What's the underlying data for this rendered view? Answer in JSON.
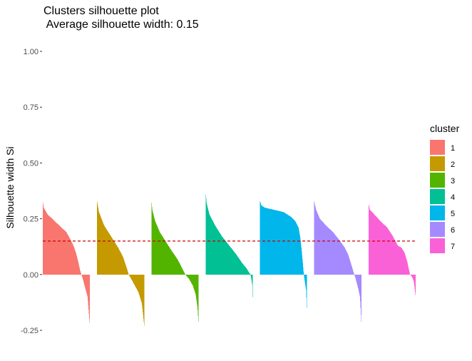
{
  "chart_data": {
    "type": "bar",
    "title": "Clusters silhouette plot",
    "subtitle": " Average silhouette width: 0.15",
    "xlabel": "",
    "ylabel": "Silhouette width Si",
    "ylim": [
      -0.25,
      1.0
    ],
    "yticks": [
      "1.00",
      "0.75",
      "0.50",
      "0.25",
      "0.00",
      "-0.25"
    ],
    "reference_line": {
      "value": 0.15,
      "color": "#cc0000",
      "style": "dashed"
    },
    "legend": {
      "title": "cluster",
      "position": "right"
    },
    "series": [
      {
        "name": "1",
        "color": "#F8766D",
        "max": 0.33,
        "min": -0.23,
        "profile": [
          [
            0,
            0.33
          ],
          [
            0.02,
            0.3
          ],
          [
            0.1,
            0.27
          ],
          [
            0.25,
            0.24
          ],
          [
            0.4,
            0.21
          ],
          [
            0.5,
            0.19
          ],
          [
            0.58,
            0.16
          ],
          [
            0.65,
            0.13
          ],
          [
            0.7,
            0.1
          ],
          [
            0.75,
            0.06
          ],
          [
            0.79,
            0.02
          ],
          [
            0.82,
            0.0
          ],
          [
            0.85,
            -0.02
          ],
          [
            0.9,
            -0.06
          ],
          [
            0.95,
            -0.1
          ],
          [
            1,
            -0.23
          ]
        ]
      },
      {
        "name": "2",
        "color": "#C49A00",
        "max": 0.33,
        "min": -0.23,
        "profile": [
          [
            0,
            0.33
          ],
          [
            0.04,
            0.28
          ],
          [
            0.15,
            0.22
          ],
          [
            0.3,
            0.17
          ],
          [
            0.45,
            0.12
          ],
          [
            0.55,
            0.08
          ],
          [
            0.63,
            0.03
          ],
          [
            0.67,
            0.0
          ],
          [
            0.75,
            -0.03
          ],
          [
            0.88,
            -0.08
          ],
          [
            0.95,
            -0.13
          ],
          [
            1,
            -0.23
          ]
        ]
      },
      {
        "name": "3",
        "color": "#53B400",
        "max": 0.34,
        "min": -0.22,
        "profile": [
          [
            0,
            0.34
          ],
          [
            0.02,
            0.29
          ],
          [
            0.08,
            0.24
          ],
          [
            0.18,
            0.19
          ],
          [
            0.3,
            0.15
          ],
          [
            0.42,
            0.11
          ],
          [
            0.55,
            0.07
          ],
          [
            0.65,
            0.03
          ],
          [
            0.72,
            0.0
          ],
          [
            0.8,
            -0.02
          ],
          [
            0.88,
            -0.05
          ],
          [
            0.94,
            -0.09
          ],
          [
            0.98,
            -0.15
          ],
          [
            1,
            -0.22
          ]
        ]
      },
      {
        "name": "4",
        "color": "#00C094",
        "max": 0.37,
        "min": -0.15,
        "profile": [
          [
            0,
            0.37
          ],
          [
            0.02,
            0.32
          ],
          [
            0.08,
            0.27
          ],
          [
            0.2,
            0.22
          ],
          [
            0.35,
            0.17
          ],
          [
            0.5,
            0.13
          ],
          [
            0.65,
            0.09
          ],
          [
            0.78,
            0.05
          ],
          [
            0.86,
            0.03
          ],
          [
            0.92,
            0.01
          ],
          [
            0.95,
            0.0
          ],
          [
            0.97,
            -0.02
          ],
          [
            0.99,
            -0.05
          ],
          [
            1,
            -0.15
          ]
        ]
      },
      {
        "name": "5",
        "color": "#00B6EB",
        "max": 0.33,
        "min": -0.19,
        "profile": [
          [
            0,
            0.33
          ],
          [
            0.03,
            0.31
          ],
          [
            0.1,
            0.3
          ],
          [
            0.3,
            0.29
          ],
          [
            0.5,
            0.28
          ],
          [
            0.65,
            0.26
          ],
          [
            0.75,
            0.24
          ],
          [
            0.82,
            0.21
          ],
          [
            0.86,
            0.16
          ],
          [
            0.89,
            0.1
          ],
          [
            0.91,
            0.05
          ],
          [
            0.93,
            0.0
          ],
          [
            0.95,
            -0.03
          ],
          [
            0.98,
            -0.07
          ],
          [
            1,
            -0.19
          ]
        ]
      },
      {
        "name": "6",
        "color": "#A58AFF",
        "max": 0.33,
        "min": -0.22,
        "profile": [
          [
            0,
            0.33
          ],
          [
            0.04,
            0.29
          ],
          [
            0.12,
            0.25
          ],
          [
            0.25,
            0.22
          ],
          [
            0.4,
            0.19
          ],
          [
            0.55,
            0.15
          ],
          [
            0.65,
            0.12
          ],
          [
            0.72,
            0.09
          ],
          [
            0.78,
            0.05
          ],
          [
            0.82,
            0.02
          ],
          [
            0.85,
            0.0
          ],
          [
            0.88,
            -0.02
          ],
          [
            0.93,
            -0.06
          ],
          [
            0.97,
            -0.1
          ],
          [
            1,
            -0.22
          ]
        ]
      },
      {
        "name": "7",
        "color": "#FB61D7",
        "max": 0.32,
        "min": -0.1,
        "profile": [
          [
            0,
            0.32
          ],
          [
            0.03,
            0.29
          ],
          [
            0.12,
            0.27
          ],
          [
            0.25,
            0.24
          ],
          [
            0.4,
            0.21
          ],
          [
            0.52,
            0.17
          ],
          [
            0.62,
            0.13
          ],
          [
            0.7,
            0.12
          ],
          [
            0.76,
            0.1
          ],
          [
            0.82,
            0.06
          ],
          [
            0.86,
            0.02
          ],
          [
            0.88,
            0.0
          ],
          [
            0.92,
            -0.01
          ],
          [
            0.96,
            -0.03
          ],
          [
            1,
            -0.1
          ]
        ]
      }
    ]
  }
}
